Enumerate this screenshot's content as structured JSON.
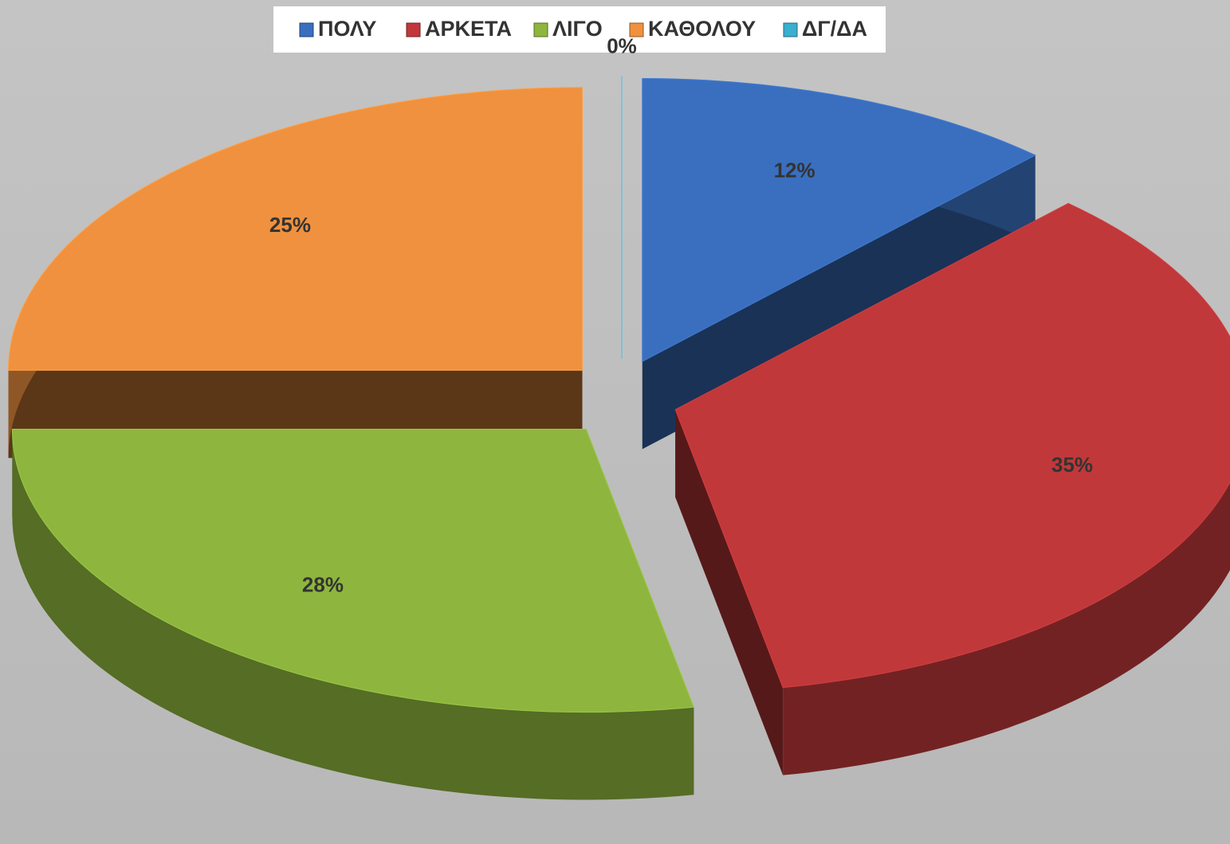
{
  "chart_data": {
    "type": "pie3d",
    "categories": [
      "ΠΟΛΥ",
      "ΑΡΚΕΤΑ",
      "ΛΙΓΟ",
      "ΚΑΘΟΛΟΥ",
      "ΔΓ/ΔΑ"
    ],
    "values": [
      12,
      35,
      28,
      25,
      0
    ],
    "value_labels": [
      "12%",
      "35%",
      "28%",
      "25%",
      "0%"
    ],
    "colors": [
      "#3a6fbf",
      "#c0383a",
      "#8eb63e",
      "#f0913f",
      "#3aafd0"
    ],
    "legend": "top"
  }
}
